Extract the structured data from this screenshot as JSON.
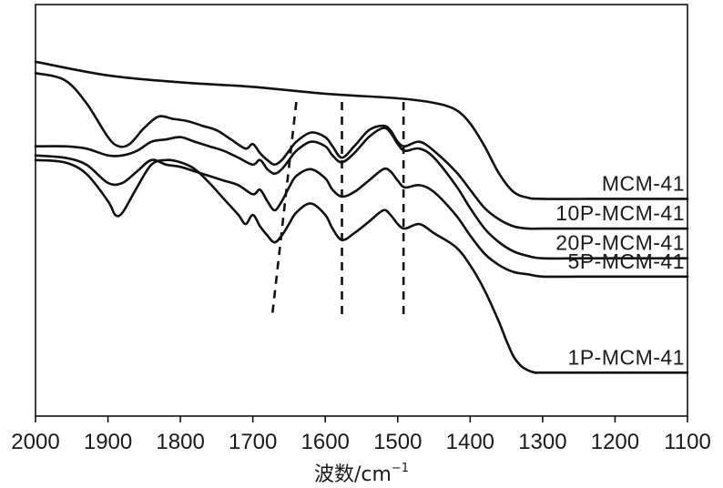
{
  "chart_data": {
    "type": "line",
    "title": "",
    "xlabel": "波数/cm",
    "xlabel_superscript": "−1",
    "ylabel": "",
    "xlim": [
      2000,
      1100
    ],
    "x_reversed": true,
    "y_ticks_shown": false,
    "x_ticks": [
      2000,
      1900,
      1800,
      1700,
      1600,
      1500,
      1400,
      1300,
      1200,
      1100
    ],
    "x_tick_labels": [
      "2000",
      "1900",
      "1800",
      "1700",
      "1600",
      "1500",
      "1400",
      "1300",
      "1200",
      "1100"
    ],
    "grid": false,
    "legend": "labels at right end of each curve",
    "marker_lines": [
      {
        "x_top": 1640,
        "x_bottom": 1673
      },
      {
        "x_top": 1577,
        "x_bottom": 1577
      },
      {
        "x_top": 1492,
        "x_bottom": 1492
      }
    ],
    "series": [
      {
        "name": "MCM-41",
        "x": [
          2000,
          1900,
          1800,
          1700,
          1600,
          1500,
          1450,
          1420,
          1400,
          1380,
          1360,
          1340,
          1320,
          1300,
          1200,
          1100
        ],
        "y": [
          1.55,
          1.49,
          1.46,
          1.44,
          1.41,
          1.39,
          1.37,
          1.34,
          1.28,
          1.18,
          1.06,
          0.98,
          0.955,
          0.95,
          0.95,
          0.95
        ]
      },
      {
        "name": "10P-MCM-41",
        "x": [
          2000,
          1960,
          1930,
          1900,
          1885,
          1870,
          1850,
          1830,
          1810,
          1790,
          1770,
          1750,
          1730,
          1710,
          1700,
          1690,
          1680,
          1670,
          1660,
          1650,
          1640,
          1620,
          1600,
          1590,
          1577,
          1560,
          1540,
          1520,
          1510,
          1500,
          1490,
          1470,
          1450,
          1420,
          1400,
          1380,
          1360,
          1340,
          1320,
          1300,
          1250,
          1200,
          1100
        ],
        "y": [
          1.5,
          1.47,
          1.37,
          1.22,
          1.18,
          1.19,
          1.26,
          1.31,
          1.3,
          1.29,
          1.27,
          1.25,
          1.21,
          1.17,
          1.19,
          1.15,
          1.12,
          1.1,
          1.12,
          1.16,
          1.2,
          1.24,
          1.22,
          1.18,
          1.13,
          1.18,
          1.25,
          1.27,
          1.25,
          1.2,
          1.18,
          1.2,
          1.16,
          1.07,
          0.99,
          0.91,
          0.86,
          0.83,
          0.82,
          0.82,
          0.82,
          0.82,
          0.82
        ]
      },
      {
        "name": "20P-MCM-41",
        "x": [
          2000,
          1960,
          1930,
          1900,
          1880,
          1860,
          1840,
          1820,
          1800,
          1780,
          1760,
          1740,
          1720,
          1700,
          1690,
          1680,
          1670,
          1660,
          1650,
          1640,
          1620,
          1600,
          1590,
          1577,
          1560,
          1540,
          1520,
          1510,
          1500,
          1490,
          1470,
          1450,
          1420,
          1400,
          1380,
          1360,
          1340,
          1320,
          1300,
          1250,
          1200,
          1100
        ],
        "y": [
          1.18,
          1.18,
          1.17,
          1.14,
          1.14,
          1.16,
          1.2,
          1.21,
          1.22,
          1.2,
          1.18,
          1.16,
          1.13,
          1.1,
          1.12,
          1.08,
          1.06,
          1.08,
          1.12,
          1.16,
          1.2,
          1.18,
          1.14,
          1.11,
          1.15,
          1.22,
          1.26,
          1.24,
          1.19,
          1.16,
          1.17,
          1.13,
          1.01,
          0.91,
          0.82,
          0.76,
          0.72,
          0.7,
          0.69,
          0.69,
          0.69,
          0.69
        ]
      },
      {
        "name": "5P-MCM-41",
        "x": [
          2000,
          1960,
          1930,
          1900,
          1880,
          1860,
          1840,
          1820,
          1800,
          1780,
          1760,
          1740,
          1720,
          1700,
          1690,
          1680,
          1670,
          1660,
          1650,
          1640,
          1620,
          1600,
          1590,
          1577,
          1560,
          1540,
          1520,
          1510,
          1500,
          1490,
          1470,
          1450,
          1420,
          1400,
          1380,
          1360,
          1340,
          1320,
          1300,
          1250,
          1200,
          1100
        ],
        "y": [
          1.14,
          1.13,
          1.1,
          1.02,
          1.02,
          1.07,
          1.12,
          1.1,
          1.09,
          1.07,
          1.05,
          1.03,
          1.01,
          0.97,
          0.99,
          0.94,
          0.9,
          0.94,
          1.0,
          1.05,
          1.08,
          1.04,
          0.99,
          0.96,
          0.98,
          1.03,
          1.08,
          1.07,
          1.03,
          1.0,
          1.01,
          0.98,
          0.88,
          0.79,
          0.71,
          0.66,
          0.63,
          0.62,
          0.61,
          0.61,
          0.61,
          0.61
        ]
      },
      {
        "name": "1P-MCM-41",
        "x": [
          2000,
          1960,
          1930,
          1900,
          1890,
          1880,
          1860,
          1840,
          1820,
          1800,
          1780,
          1760,
          1740,
          1720,
          1710,
          1700,
          1690,
          1680,
          1670,
          1660,
          1650,
          1640,
          1620,
          1600,
          1590,
          1577,
          1560,
          1540,
          1520,
          1510,
          1500,
          1490,
          1470,
          1450,
          1420,
          1400,
          1380,
          1360,
          1350,
          1340,
          1330,
          1320,
          1310,
          1300,
          1200,
          1100
        ],
        "y": [
          1.12,
          1.11,
          1.06,
          0.94,
          0.88,
          0.89,
          1.0,
          1.1,
          1.12,
          1.11,
          1.08,
          1.02,
          0.95,
          0.88,
          0.84,
          0.88,
          0.83,
          0.79,
          0.76,
          0.79,
          0.84,
          0.89,
          0.93,
          0.88,
          0.82,
          0.77,
          0.8,
          0.85,
          0.9,
          0.88,
          0.84,
          0.82,
          0.84,
          0.8,
          0.74,
          0.66,
          0.55,
          0.41,
          0.33,
          0.26,
          0.22,
          0.2,
          0.19,
          0.19,
          0.19,
          0.19
        ]
      }
    ]
  }
}
